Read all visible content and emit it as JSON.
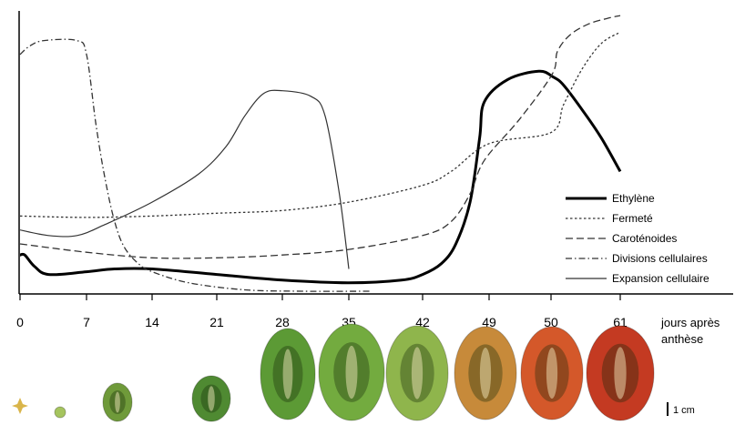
{
  "chart_data": {
    "type": "line",
    "x_unit_label": "jours après anthèse",
    "x_ticks": [
      "0",
      "7",
      "14",
      "21",
      "28",
      "35",
      "42",
      "49",
      "50",
      "61"
    ],
    "y_ticks": [],
    "grid": false,
    "legend_position": "right",
    "series": [
      {
        "name": "Ethylène",
        "style": "solid-thick",
        "color": "#000000",
        "points": [
          [
            0,
            0.13
          ],
          [
            0.5,
            0.13
          ],
          [
            1.5,
            0.09
          ],
          [
            3,
            0.06
          ],
          [
            7,
            0.07
          ],
          [
            10,
            0.08
          ],
          [
            14,
            0.08
          ],
          [
            21,
            0.06
          ],
          [
            28,
            0.04
          ],
          [
            35,
            0.03
          ],
          [
            40,
            0.04
          ],
          [
            42,
            0.06
          ],
          [
            44,
            0.1
          ],
          [
            45.5,
            0.17
          ],
          [
            47,
            0.32
          ],
          [
            48,
            0.55
          ],
          [
            48.5,
            0.68
          ],
          [
            49.3,
            0.76
          ],
          [
            49.8,
            0.79
          ],
          [
            50.3,
            0.77
          ],
          [
            52,
            0.74
          ],
          [
            55,
            0.65
          ],
          [
            58,
            0.55
          ],
          [
            61,
            0.43
          ]
        ]
      },
      {
        "name": "Fermeté",
        "style": "dotted",
        "color": "#333333",
        "points": [
          [
            0,
            0.27
          ],
          [
            7,
            0.265
          ],
          [
            14,
            0.27
          ],
          [
            21,
            0.28
          ],
          [
            28,
            0.29
          ],
          [
            35,
            0.32
          ],
          [
            42,
            0.38
          ],
          [
            45,
            0.43
          ],
          [
            49,
            0.53
          ],
          [
            50,
            0.57
          ],
          [
            52,
            0.67
          ],
          [
            55,
            0.8
          ],
          [
            58,
            0.89
          ],
          [
            61,
            0.93
          ]
        ]
      },
      {
        "name": "Caroténoides",
        "style": "dashed",
        "color": "#333333",
        "points": [
          [
            0,
            0.17
          ],
          [
            7,
            0.14
          ],
          [
            14,
            0.12
          ],
          [
            21,
            0.12
          ],
          [
            28,
            0.13
          ],
          [
            35,
            0.15
          ],
          [
            42,
            0.2
          ],
          [
            45,
            0.25
          ],
          [
            47,
            0.35
          ],
          [
            48.5,
            0.47
          ],
          [
            49.5,
            0.62
          ],
          [
            50.2,
            0.78
          ],
          [
            51,
            0.86
          ],
          [
            53,
            0.92
          ],
          [
            56,
            0.96
          ],
          [
            59,
            0.98
          ],
          [
            61,
            0.99
          ]
        ]
      },
      {
        "name": "Divisions cellulaires",
        "style": "dash-dot",
        "color": "#333333",
        "points": [
          [
            0,
            0.85
          ],
          [
            1,
            0.88
          ],
          [
            2.5,
            0.9
          ],
          [
            6,
            0.9
          ],
          [
            7,
            0.85
          ],
          [
            8,
            0.6
          ],
          [
            9,
            0.4
          ],
          [
            10,
            0.25
          ],
          [
            11,
            0.16
          ],
          [
            12.5,
            0.1
          ],
          [
            14,
            0.07
          ],
          [
            18,
            0.03
          ],
          [
            24,
            0.005
          ],
          [
            30,
            0.0
          ],
          [
            37,
            0.0
          ]
        ]
      },
      {
        "name": "Expansion cellulaire",
        "style": "solid-thin",
        "color": "#333333",
        "points": [
          [
            0,
            0.22
          ],
          [
            3,
            0.2
          ],
          [
            6,
            0.2
          ],
          [
            9,
            0.24
          ],
          [
            14,
            0.32
          ],
          [
            19,
            0.42
          ],
          [
            22,
            0.52
          ],
          [
            24,
            0.63
          ],
          [
            26,
            0.71
          ],
          [
            28,
            0.72
          ],
          [
            31,
            0.7
          ],
          [
            32.5,
            0.63
          ],
          [
            34,
            0.35
          ],
          [
            35,
            0.08
          ]
        ]
      }
    ],
    "scale_bar_label": "1 cm"
  },
  "specimens": [
    {
      "stage": "flower",
      "color": "#d9b54a"
    },
    {
      "stage": "0",
      "color": "#a5c45e"
    },
    {
      "stage": "7",
      "color": "#6f9a3a"
    },
    {
      "stage": "14",
      "color": "#4f8a32"
    },
    {
      "stage": "21",
      "color": "#5c9a35"
    },
    {
      "stage": "28",
      "color": "#73ab3f"
    },
    {
      "stage": "35",
      "color": "#8fb54c"
    },
    {
      "stage": "42",
      "color": "#c78a3a"
    },
    {
      "stage": "49",
      "color": "#d4582a"
    },
    {
      "stage": "50",
      "color": "#c43a22"
    }
  ]
}
